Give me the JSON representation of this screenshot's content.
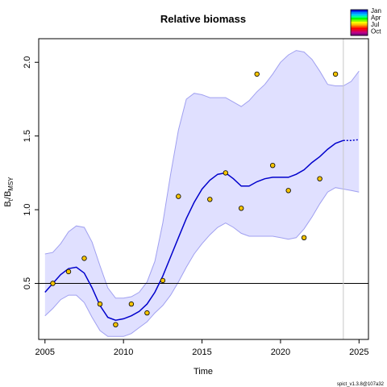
{
  "chart_data": {
    "type": "line",
    "title": "Relative biomass",
    "xlabel": "Time",
    "ylabel": {
      "main": "B",
      "sub1": "t",
      "slash": "/B",
      "sub2": "MSY"
    },
    "xlim": [
      2004.6,
      2025.6
    ],
    "ylim": [
      0.12,
      2.16
    ],
    "x_ticks": [
      2005,
      2010,
      2015,
      2020,
      2025
    ],
    "y_ticks": [
      0.5,
      1.0,
      1.5,
      2.0
    ],
    "y_tick_labels": [
      "0.5",
      "1.0",
      "1.5",
      "2.0"
    ],
    "reference_line_y": 0.5,
    "forecast_start_x": 2024.0,
    "estimate": {
      "x": [
        2005.0,
        2005.5,
        2006.0,
        2006.5,
        2007.0,
        2007.5,
        2008.0,
        2008.5,
        2009.0,
        2009.5,
        2010.0,
        2010.5,
        2011.0,
        2011.5,
        2012.0,
        2012.5,
        2013.0,
        2013.5,
        2014.0,
        2014.5,
        2015.0,
        2015.5,
        2016.0,
        2016.5,
        2017.0,
        2017.5,
        2018.0,
        2018.5,
        2019.0,
        2019.5,
        2020.0,
        2020.5,
        2021.0,
        2021.5,
        2022.0,
        2022.5,
        2023.0,
        2023.5,
        2024.0
      ],
      "y": [
        0.44,
        0.5,
        0.56,
        0.6,
        0.61,
        0.57,
        0.47,
        0.35,
        0.27,
        0.25,
        0.26,
        0.28,
        0.31,
        0.36,
        0.44,
        0.55,
        0.68,
        0.81,
        0.94,
        1.05,
        1.14,
        1.2,
        1.24,
        1.25,
        1.21,
        1.16,
        1.16,
        1.19,
        1.21,
        1.22,
        1.22,
        1.22,
        1.24,
        1.27,
        1.32,
        1.36,
        1.41,
        1.45,
        1.47
      ]
    },
    "forecast": {
      "x": [
        2024.0,
        2024.5,
        2025.0
      ],
      "y": [
        1.47,
        1.47,
        1.475
      ]
    },
    "ci_upper": [
      0.7,
      0.71,
      0.77,
      0.85,
      0.89,
      0.88,
      0.78,
      0.62,
      0.47,
      0.4,
      0.4,
      0.41,
      0.44,
      0.51,
      0.65,
      0.91,
      1.24,
      1.54,
      1.75,
      1.79,
      1.78,
      1.76,
      1.76,
      1.76,
      1.73,
      1.7,
      1.74,
      1.8,
      1.85,
      1.92,
      2.0,
      2.05,
      2.08,
      2.07,
      2.02,
      1.94,
      1.85,
      1.84,
      1.84
    ],
    "ci_lower": [
      0.28,
      0.33,
      0.39,
      0.42,
      0.42,
      0.37,
      0.27,
      0.18,
      0.14,
      0.14,
      0.14,
      0.16,
      0.2,
      0.24,
      0.3,
      0.35,
      0.42,
      0.51,
      0.61,
      0.7,
      0.77,
      0.83,
      0.88,
      0.91,
      0.88,
      0.84,
      0.82,
      0.82,
      0.82,
      0.82,
      0.81,
      0.8,
      0.81,
      0.87,
      0.95,
      1.04,
      1.12,
      1.15,
      1.14
    ],
    "ci_forecast_upper": [
      1.84,
      1.87,
      1.94
    ],
    "ci_forecast_lower": [
      1.14,
      1.13,
      1.12
    ],
    "observations": {
      "x": [
        2005.5,
        2006.5,
        2007.5,
        2008.5,
        2009.5,
        2010.5,
        2011.5,
        2012.5,
        2013.5,
        2015.5,
        2016.5,
        2017.5,
        2018.5,
        2019.5,
        2020.5,
        2021.5,
        2022.5,
        2023.5
      ],
      "y": [
        0.5,
        0.58,
        0.67,
        0.36,
        0.22,
        0.36,
        0.3,
        0.52,
        1.09,
        1.07,
        1.25,
        1.01,
        1.92,
        1.3,
        1.13,
        0.81,
        1.21,
        1.92
      ]
    },
    "colors": {
      "estimate": "#0000cc",
      "band_fill": "#e0e0ff",
      "band_edge": "#a0a0f0",
      "reference": "#000000",
      "forecast_divider": "#c8c8c8",
      "point_fill": "#f5c400",
      "point_edge": "#000000"
    },
    "legend": {
      "position": "top-right",
      "labels": [
        "Jan",
        "Apr",
        "Jul",
        "Oct"
      ],
      "colors": [
        "#0000e0",
        "#0080ff",
        "#00c0ff",
        "#00ffa0",
        "#00ff00",
        "#80ff00",
        "#ffff00",
        "#ffc000",
        "#ff6000",
        "#ff0000",
        "#e00040",
        "#c00080",
        "#800080"
      ]
    }
  },
  "footer": "spict_v1.3.8@107a32"
}
